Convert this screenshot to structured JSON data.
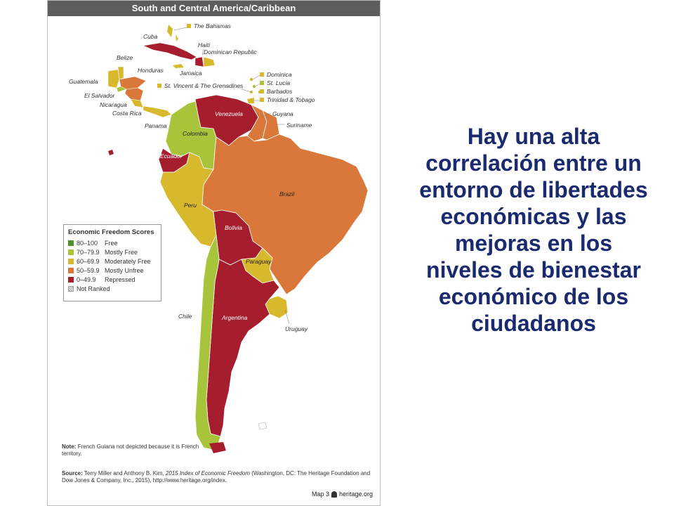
{
  "map": {
    "title": "South and Central America/Caribbean",
    "labels": {
      "cuba": "Cuba",
      "bahamas": "The Bahamas",
      "haiti": "Haiti",
      "dominican_republic": "Dominican Republic",
      "belize": "Belize",
      "honduras": "Honduras",
      "jamaica": "Jamaica",
      "guatemala": "Guatemala",
      "el_salvador": "El Salvador",
      "nicaragua": "Nicaragua",
      "costa_rica": "Costa Rica",
      "panama": "Panama",
      "st_vincent": "St. Vincent & The Grenadines",
      "dominica": "Dominica",
      "st_lucia": "St. Lucia",
      "barbados": "Barbados",
      "trinidad": "Trinidad & Tobago",
      "venezuela": "Venezuela",
      "guyana": "Guyana",
      "suriname": "Suriname",
      "colombia": "Colombia",
      "ecuador": "Ecuador",
      "brazil": "Brazil",
      "peru": "Peru",
      "bolivia": "Bolivia",
      "paraguay": "Paraguay",
      "chile": "Chile",
      "argentina": "Argentina",
      "uruguay": "Uruguay"
    },
    "colors": {
      "free": "#4f8f2c",
      "mostly_free": "#a8c43a",
      "moderately_free": "#d8b92d",
      "mostly_unfree": "#d9783a",
      "repressed": "#a61e2e",
      "border": "#ffffff",
      "sea": "#ffffff"
    },
    "legend": {
      "title": "Economic Freedom Scores",
      "items": [
        {
          "range": "80–100",
          "label": "Free",
          "color": "#4f8f2c"
        },
        {
          "range": "70–79.9",
          "label": "Mostly Free",
          "color": "#a8c43a"
        },
        {
          "range": "60–69.9",
          "label": "Moderately Free",
          "color": "#d8b92d"
        },
        {
          "range": "50–59.9",
          "label": "Mostly Unfree",
          "color": "#d9783a"
        },
        {
          "range": "0–49.9",
          "label": "Repressed",
          "color": "#a61e2e"
        }
      ],
      "not_ranked": "Not Ranked"
    },
    "note": {
      "label": "Note:",
      "text": "French Guiana not depicted because it is French territory."
    },
    "source": {
      "label": "Source:",
      "text_before": "Terry Miller and Anthony B. Kim, ",
      "title": "2015 Index of Economic Freedom",
      "text_after": " (Washington, DC: The Heritage Foundation and Dow Jones & Company, Inc., 2015), http://www.heritage.org/index."
    },
    "map_ref": "Map 3",
    "site": "heritage.org"
  },
  "headline": "Hay una alta correlación entre un entorno de libertades económicas y las mejoras en los niveles de bienestar económico de los ciudadanos"
}
